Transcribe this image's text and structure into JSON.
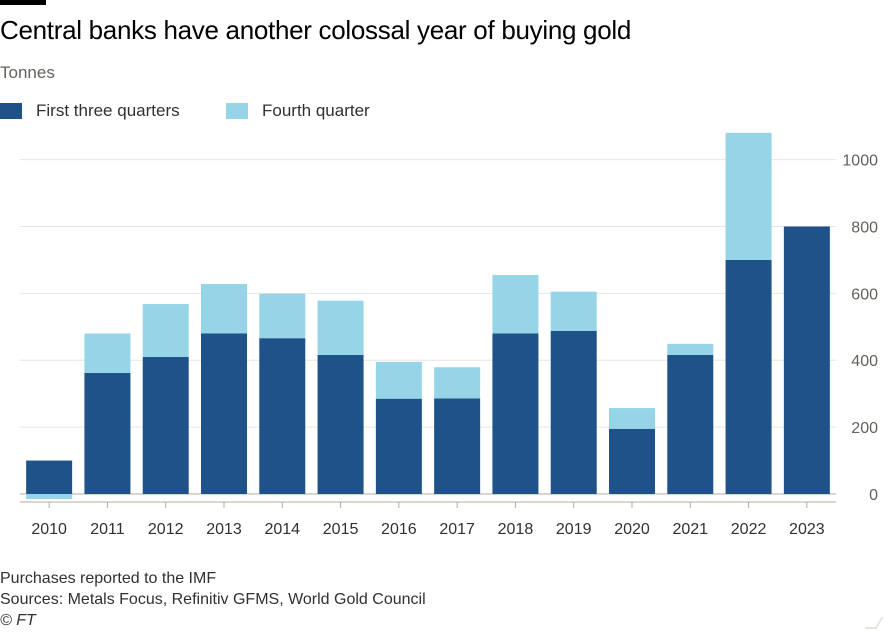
{
  "title": "Central banks have another colossal year of buying gold",
  "subtitle": "Tonnes",
  "legend": [
    {
      "label": "First three quarters",
      "color": "#1f5288"
    },
    {
      "label": "Fourth quarter",
      "color": "#96d4e8"
    }
  ],
  "footer": {
    "note": "Purchases reported to the IMF",
    "sources": "Sources: Metals Focus, Refinitiv GFMS, World Gold Council",
    "credit": "© FT"
  },
  "chart_data": {
    "type": "bar",
    "stacked": true,
    "categories": [
      "2010",
      "2011",
      "2012",
      "2013",
      "2014",
      "2015",
      "2016",
      "2017",
      "2018",
      "2019",
      "2020",
      "2021",
      "2022",
      "2023"
    ],
    "series": [
      {
        "name": "First three quarters",
        "color": "#1f5288",
        "values": [
          100,
          362,
          410,
          480,
          466,
          416,
          285,
          286,
          480,
          488,
          195,
          416,
          700,
          800
        ]
      },
      {
        "name": "Fourth quarter",
        "color": "#96d4e8",
        "values": [
          -15,
          118,
          158,
          148,
          133,
          162,
          110,
          93,
          175,
          117,
          62,
          33,
          380,
          0
        ]
      }
    ],
    "yticks": [
      0,
      200,
      400,
      600,
      800,
      1000
    ],
    "ylim": [
      -30,
      1100
    ],
    "ylabel": "Tonnes",
    "y_axis_position": "right",
    "grid": true,
    "legend_position": "top-left"
  }
}
